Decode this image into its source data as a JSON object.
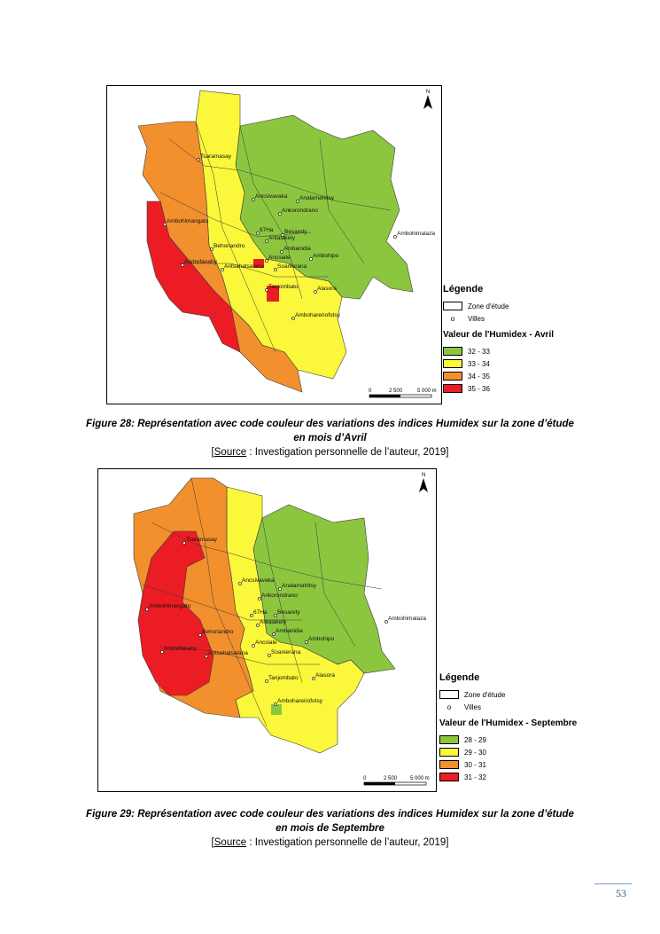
{
  "colors": {
    "green": "#8cc63f",
    "yellow": "#fbf73a",
    "orange": "#f2902e",
    "red": "#ec1c24",
    "boundary": "#3a3a3a",
    "page_number": "#2e5d86"
  },
  "common": {
    "north_label": "N",
    "scale_labels": [
      "0",
      "2 500",
      "5 000 m"
    ],
    "legend_title": "Légende",
    "zone_label": "Zone d'étude",
    "villes_label": "Villes",
    "towns": [
      "Tsaramasay",
      "Ancsivavaka",
      "Analamahitsy",
      "Ankorondrano",
      "Ambohimalaza",
      "Ambohimangato",
      "67Ha",
      "Besarety",
      "Antalakely",
      "Ambanidia",
      "Behoriandro",
      "Ancsiale",
      "Ambohipo",
      "Andrefanahy",
      "Antsahatsalana",
      "Soanierana",
      "Alasora",
      "Tanjombato",
      "Ambohareriofotsy"
    ]
  },
  "figure28": {
    "legend_subtitle": "Valeur de l'Humidex - Avril",
    "classes": [
      {
        "label": "32 - 33",
        "color": "#8cc63f"
      },
      {
        "label": "33 - 34",
        "color": "#fbf73a"
      },
      {
        "label": "34 - 35",
        "color": "#f2902e"
      },
      {
        "label": "35 - 36",
        "color": "#ec1c24"
      }
    ],
    "caption_line1": "Figure 28: Représentation avec code couleur des variations des indices Humidex sur la zone d’étude",
    "caption_line2": "en mois d’Avril",
    "source_label": "Source",
    "source_text": " : Investigation personnelle de l’auteur, 2019]",
    "source_open": "["
  },
  "figure29": {
    "legend_subtitle": "Valeur de l'Humidex - Septembre",
    "classes": [
      {
        "label": "28 - 29",
        "color": "#8cc63f"
      },
      {
        "label": "29 - 30",
        "color": "#fbf73a"
      },
      {
        "label": "30 - 31",
        "color": "#f2902e"
      },
      {
        "label": "31 - 32",
        "color": "#ec1c24"
      }
    ],
    "caption_line1": "Figure 29: Représentation avec code couleur des variations des indices Humidex sur la zone d’étude",
    "caption_line2": "en mois de Septembre",
    "source_label": "Source",
    "source_text": " : Investigation personnelle de l’auteur, 2019]",
    "source_open": "["
  },
  "page_number": "53"
}
